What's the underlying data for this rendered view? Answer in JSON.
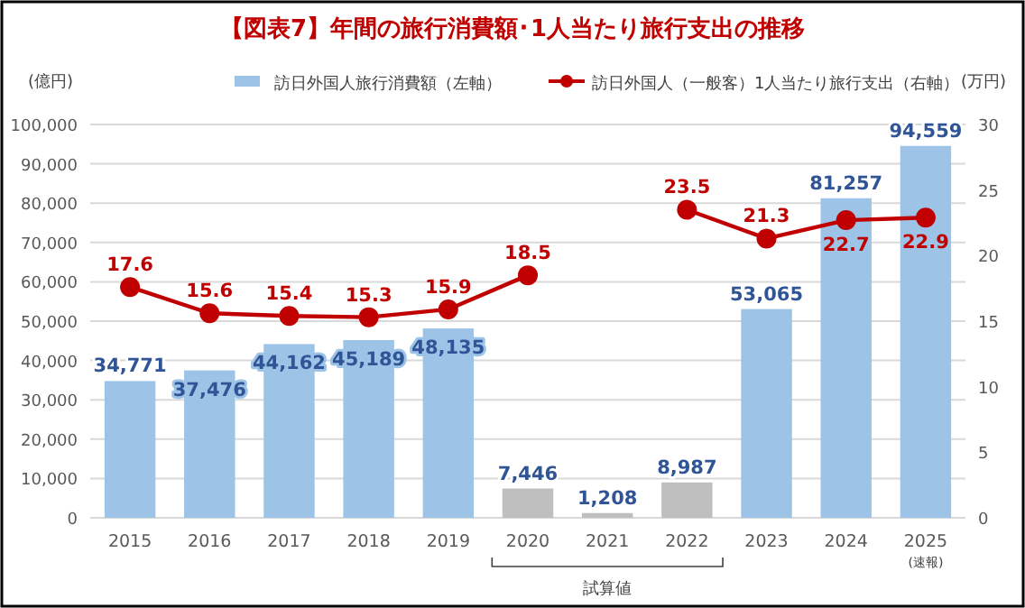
{
  "chart_data": {
    "type": "bar",
    "title": "【図表7】年間の旅行消費額･1人当たり旅行支出の推移",
    "ylabel": "(億円)",
    "y2label": "(万円)",
    "categories": [
      "2015",
      "2016",
      "2017",
      "2018",
      "2019",
      "2020",
      "2021",
      "2022",
      "2023",
      "2024",
      "2025"
    ],
    "series": [
      {
        "name": "訪日外国人旅行消費額（左軸）",
        "color": "#9dc3e6",
        "colors": [
          "#9dc3e6",
          "#9dc3e6",
          "#9dc3e6",
          "#9dc3e6",
          "#9dc3e6",
          "#bfbfbf",
          "#bfbfbf",
          "#bfbfbf",
          "#9dc3e6",
          "#9dc3e6",
          "#9dc3e6"
        ],
        "values": [
          34771,
          37476,
          44162,
          45189,
          48135,
          7446,
          1208,
          8987,
          53065,
          81257,
          94559
        ],
        "value_labels": [
          "34,771",
          "37,476",
          "44,162",
          "45,189",
          "48,135",
          "7,446",
          "1,208",
          "8,987",
          "53,065",
          "81,257",
          "94,559"
        ]
      },
      {
        "name": "訪日外国人（一般客）1人当たり旅行支出（右軸）",
        "type": "line",
        "axis": "y2",
        "color": "#c00000",
        "values": [
          17.6,
          15.6,
          15.4,
          15.3,
          15.9,
          18.5,
          null,
          23.5,
          21.3,
          22.7,
          22.9
        ],
        "value_labels": [
          "17.6",
          "15.6",
          "15.4",
          "15.3",
          "15.9",
          "18.5",
          null,
          "23.5",
          "21.3",
          "22.7",
          "22.9"
        ]
      }
    ],
    "ylim": [
      0,
      100000
    ],
    "yticks": [
      0,
      {
        "value": 10000,
        "label": "10,000"
      },
      {
        "value": 20000,
        "label": "20,000"
      },
      {
        "value": 30000,
        "label": "30,000"
      },
      {
        "value": 40000,
        "label": "40,000"
      },
      {
        "value": 50000,
        "label": "50,000"
      },
      {
        "value": 60000,
        "label": "60,000"
      },
      {
        "value": 70000,
        "label": "70,000"
      },
      {
        "value": 80000,
        "label": "80,000"
      },
      {
        "value": 90000,
        "label": "90,000"
      },
      {
        "value": 100000,
        "label": "100,000"
      }
    ],
    "y2lim": [
      0,
      30
    ],
    "y2ticks": [
      0,
      5,
      10,
      15,
      20,
      25,
      30
    ],
    "grid": "y",
    "legend": "top",
    "marker": "circle",
    "annotations": [
      "試算値",
      "(速報)"
    ]
  }
}
